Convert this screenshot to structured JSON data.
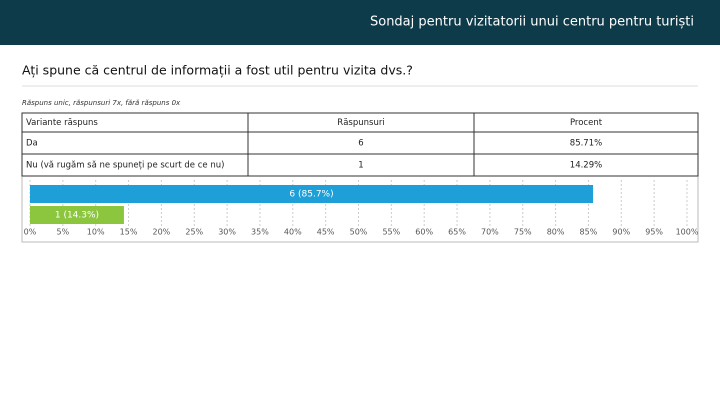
{
  "header": {
    "title": "Sondaj pentru vizitatorii unui centru pentru turiști"
  },
  "question": "Ați spune că centrul de informații a fost util pentru vizita dvs.?",
  "note": "Răspuns unic, răspunsuri 7x, fără răspuns 0x",
  "table": {
    "columns": [
      "Variante răspuns",
      "Răspunsuri",
      "Procent"
    ],
    "rows": [
      [
        "Da",
        "6",
        "85.71%"
      ],
      [
        "Nu (vă rugăm să ne spuneți pe scurt de ce nu)",
        "1",
        "14.29%"
      ]
    ]
  },
  "chart_data": {
    "type": "hbar",
    "values": [
      85.7,
      14.3
    ],
    "value_labels": [
      "6 (85.7%)",
      "1 (14.3%)"
    ],
    "colors": [
      "#1e9fd8",
      "#8cc63f"
    ],
    "xlim": [
      0,
      100
    ],
    "xticks": [
      {
        "value": 0,
        "label": "0%"
      },
      {
        "value": 5,
        "label": "5%"
      },
      {
        "value": 10,
        "label": "10%"
      },
      {
        "value": 15,
        "label": "15%"
      },
      {
        "value": 20,
        "label": "20%"
      },
      {
        "value": 25,
        "label": "25%"
      },
      {
        "value": 30,
        "label": "30%"
      },
      {
        "value": 35,
        "label": "35%"
      },
      {
        "value": 40,
        "label": "40%"
      },
      {
        "value": 45,
        "label": "45%"
      },
      {
        "value": 50,
        "label": "50%"
      },
      {
        "value": 55,
        "label": "55%"
      },
      {
        "value": 60,
        "label": "60%"
      },
      {
        "value": 65,
        "label": "65%"
      },
      {
        "value": 70,
        "label": "70%"
      },
      {
        "value": 75,
        "label": "75%"
      },
      {
        "value": 80,
        "label": "80%"
      },
      {
        "value": 85,
        "label": "85%"
      },
      {
        "value": 90,
        "label": "90%"
      },
      {
        "value": 95,
        "label": "95%"
      },
      {
        "value": 100,
        "label": "100%"
      }
    ],
    "grid": true
  }
}
